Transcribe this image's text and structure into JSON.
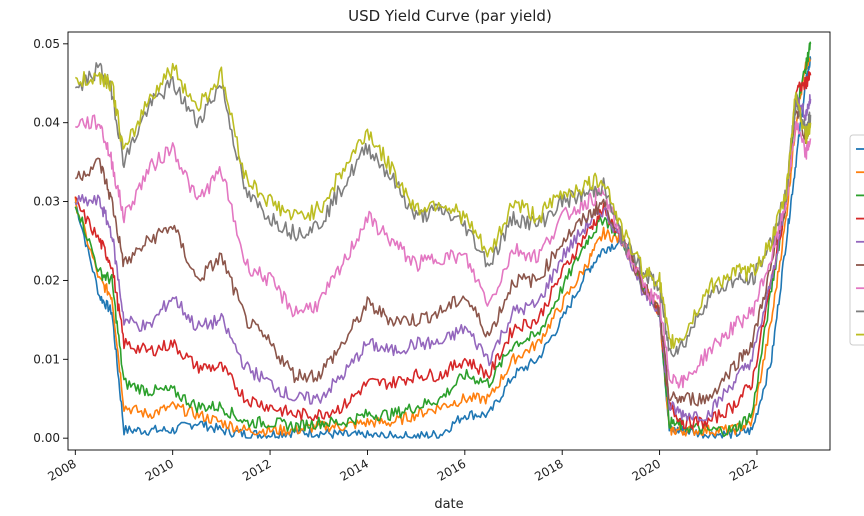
{
  "chart_data": {
    "type": "line",
    "title": "USD Yield Curve (par yield)",
    "xlabel": "date",
    "ylabel": "",
    "x_ticks": [
      "2008",
      "2010",
      "2012",
      "2014",
      "2016",
      "2018",
      "2020",
      "2022"
    ],
    "y_ticks": [
      "0.00",
      "0.01",
      "0.02",
      "0.03",
      "0.04",
      "0.05"
    ],
    "xlim": [
      2007.85,
      2023.5
    ],
    "ylim": [
      -0.0015,
      0.0515
    ],
    "legend_placement": "right",
    "x": [
      2008.0,
      2008.5,
      2008.75,
      2009.0,
      2009.5,
      2010.0,
      2010.5,
      2011.0,
      2011.5,
      2012.0,
      2012.5,
      2013.0,
      2013.5,
      2014.0,
      2014.5,
      2015.0,
      2015.5,
      2016.0,
      2016.5,
      2017.0,
      2017.5,
      2018.0,
      2018.5,
      2018.85,
      2019.25,
      2019.7,
      2020.0,
      2020.2,
      2020.5,
      2021.0,
      2021.5,
      2021.9,
      2022.3,
      2022.6,
      2022.8,
      2023.0,
      2023.1
    ],
    "series": [
      {
        "color": "#1f77b4",
        "values": [
          0.03,
          0.018,
          0.016,
          0.001,
          0.001,
          0.001,
          0.002,
          0.001,
          0.0005,
          0.0005,
          0.0008,
          0.0007,
          0.0004,
          0.0003,
          0.0002,
          0.0002,
          0.0005,
          0.003,
          0.003,
          0.008,
          0.01,
          0.015,
          0.021,
          0.024,
          0.025,
          0.019,
          0.016,
          0.001,
          0.001,
          0.0005,
          0.0005,
          0.001,
          0.01,
          0.025,
          0.035,
          0.045,
          0.048
        ]
      },
      {
        "color": "#ff7f0e",
        "values": [
          0.03,
          0.02,
          0.018,
          0.004,
          0.003,
          0.004,
          0.003,
          0.002,
          0.001,
          0.001,
          0.001,
          0.0015,
          0.0015,
          0.002,
          0.002,
          0.003,
          0.004,
          0.005,
          0.005,
          0.01,
          0.012,
          0.017,
          0.022,
          0.026,
          0.025,
          0.019,
          0.016,
          0.001,
          0.001,
          0.001,
          0.001,
          0.002,
          0.015,
          0.028,
          0.04,
          0.047,
          0.048
        ]
      },
      {
        "color": "#2ca02c",
        "values": [
          0.03,
          0.021,
          0.02,
          0.007,
          0.006,
          0.006,
          0.004,
          0.004,
          0.002,
          0.002,
          0.0015,
          0.002,
          0.002,
          0.003,
          0.003,
          0.004,
          0.005,
          0.008,
          0.007,
          0.012,
          0.013,
          0.019,
          0.025,
          0.028,
          0.025,
          0.019,
          0.016,
          0.002,
          0.0015,
          0.001,
          0.001,
          0.003,
          0.019,
          0.03,
          0.042,
          0.047,
          0.05
        ]
      },
      {
        "color": "#d62728",
        "values": [
          0.03,
          0.025,
          0.022,
          0.012,
          0.011,
          0.012,
          0.009,
          0.009,
          0.005,
          0.004,
          0.003,
          0.003,
          0.004,
          0.007,
          0.007,
          0.008,
          0.008,
          0.01,
          0.008,
          0.014,
          0.015,
          0.021,
          0.026,
          0.029,
          0.025,
          0.019,
          0.016,
          0.004,
          0.002,
          0.002,
          0.004,
          0.007,
          0.02,
          0.03,
          0.044,
          0.045,
          0.046
        ]
      },
      {
        "color": "#9467bd",
        "values": [
          0.03,
          0.03,
          0.026,
          0.015,
          0.014,
          0.018,
          0.014,
          0.015,
          0.009,
          0.007,
          0.005,
          0.005,
          0.008,
          0.012,
          0.011,
          0.012,
          0.012,
          0.014,
          0.01,
          0.016,
          0.017,
          0.023,
          0.027,
          0.029,
          0.025,
          0.018,
          0.016,
          0.004,
          0.003,
          0.003,
          0.007,
          0.01,
          0.02,
          0.03,
          0.043,
          0.041,
          0.043
        ]
      },
      {
        "color": "#8c564b",
        "values": [
          0.033,
          0.035,
          0.03,
          0.022,
          0.025,
          0.027,
          0.02,
          0.023,
          0.015,
          0.012,
          0.008,
          0.008,
          0.012,
          0.017,
          0.015,
          0.015,
          0.016,
          0.018,
          0.013,
          0.02,
          0.02,
          0.025,
          0.028,
          0.03,
          0.025,
          0.019,
          0.016,
          0.005,
          0.005,
          0.005,
          0.009,
          0.012,
          0.022,
          0.03,
          0.042,
          0.038,
          0.04
        ]
      },
      {
        "color": "#e377c2",
        "values": [
          0.04,
          0.04,
          0.035,
          0.028,
          0.034,
          0.037,
          0.03,
          0.034,
          0.022,
          0.02,
          0.016,
          0.017,
          0.022,
          0.028,
          0.025,
          0.022,
          0.023,
          0.023,
          0.017,
          0.024,
          0.023,
          0.028,
          0.03,
          0.031,
          0.025,
          0.019,
          0.017,
          0.008,
          0.007,
          0.011,
          0.014,
          0.016,
          0.023,
          0.03,
          0.04,
          0.036,
          0.038
        ]
      },
      {
        "color": "#7f7f7f",
        "values": [
          0.044,
          0.047,
          0.044,
          0.035,
          0.042,
          0.045,
          0.04,
          0.045,
          0.031,
          0.028,
          0.026,
          0.027,
          0.032,
          0.037,
          0.033,
          0.028,
          0.029,
          0.027,
          0.022,
          0.028,
          0.027,
          0.03,
          0.031,
          0.032,
          0.025,
          0.021,
          0.019,
          0.011,
          0.012,
          0.018,
          0.02,
          0.02,
          0.025,
          0.031,
          0.043,
          0.039,
          0.041
        ]
      },
      {
        "color": "#bcbd22",
        "values": [
          0.045,
          0.046,
          0.045,
          0.036,
          0.043,
          0.047,
          0.042,
          0.046,
          0.033,
          0.03,
          0.028,
          0.029,
          0.034,
          0.039,
          0.034,
          0.029,
          0.03,
          0.028,
          0.023,
          0.03,
          0.028,
          0.031,
          0.032,
          0.033,
          0.026,
          0.021,
          0.02,
          0.012,
          0.013,
          0.019,
          0.021,
          0.021,
          0.025,
          0.031,
          0.044,
          0.038,
          0.04
        ]
      }
    ]
  }
}
